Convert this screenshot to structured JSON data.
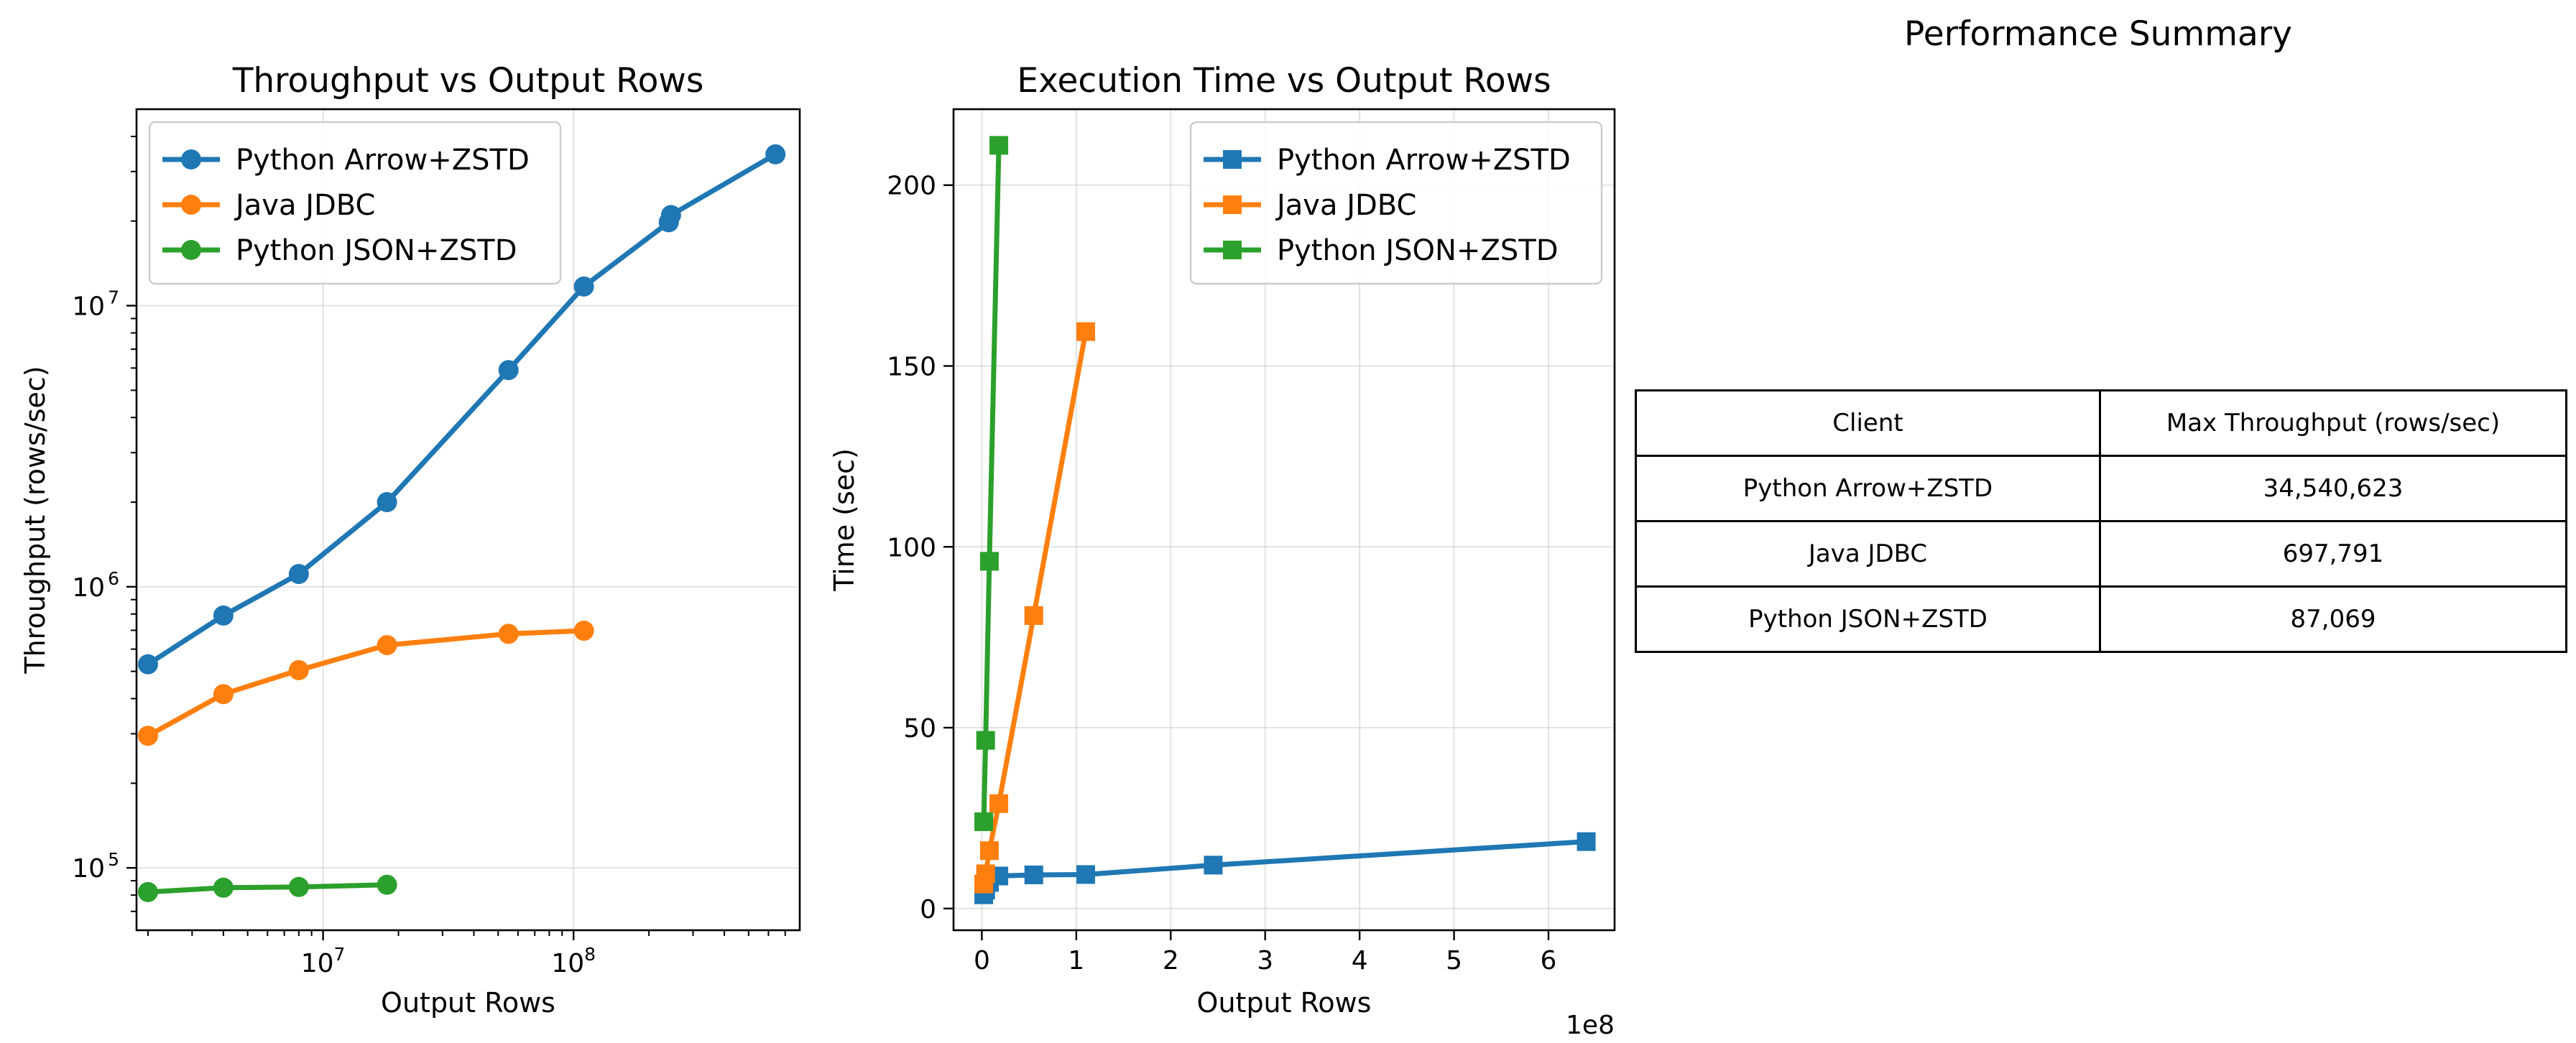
{
  "chart_data": [
    {
      "type": "line",
      "title": "Throughput vs Output Rows",
      "xlabel": "Output Rows",
      "ylabel": "Throughput (rows/sec)",
      "xscale": "log",
      "yscale": "log",
      "xlim": [
        1800000,
        800000000
      ],
      "ylim": [
        60000,
        50000000
      ],
      "x_ticks": [
        {
          "value": 10000000,
          "label": "10^7"
        },
        {
          "value": 100000000,
          "label": "10^8"
        }
      ],
      "y_ticks": [
        {
          "value": 100000,
          "label": "10^5"
        },
        {
          "value": 1000000,
          "label": "10^6"
        },
        {
          "value": 10000000,
          "label": "10^7"
        }
      ],
      "grid": true,
      "legend": "top-left",
      "series": [
        {
          "name": "Python Arrow+ZSTD",
          "color": "#1f77b4",
          "marker": "circle",
          "x": [
            2000000,
            4000000,
            8000000,
            18000000,
            55000000,
            110000000,
            240000000,
            245000000,
            640000000
          ],
          "y": [
            530000,
            790000,
            1110000,
            2000000,
            5900000,
            11700000,
            19800000,
            21000000,
            34540623
          ]
        },
        {
          "name": "Java JDBC",
          "color": "#ff7f0e",
          "marker": "circle",
          "x": [
            2000000,
            4000000,
            8000000,
            18000000,
            55000000,
            110000000
          ],
          "y": [
            295000,
            415000,
            505000,
            620000,
            680000,
            697791
          ]
        },
        {
          "name": "Python JSON+ZSTD",
          "color": "#2ca02c",
          "marker": "circle",
          "x": [
            2000000,
            4000000,
            8000000,
            18000000
          ],
          "y": [
            82000,
            85000,
            85500,
            87069
          ]
        }
      ]
    },
    {
      "type": "line",
      "title": "Execution Time vs Output Rows",
      "xlabel": "Output Rows",
      "ylabel": "Time (sec)",
      "x_offset_text": "1e8",
      "xlim": [
        -0.3,
        6.7
      ],
      "ylim": [
        -6,
        221
      ],
      "x_ticks": [
        0,
        1,
        2,
        3,
        4,
        5,
        6
      ],
      "y_ticks": [
        0,
        50,
        100,
        150,
        200
      ],
      "grid": true,
      "legend": "top-right",
      "series": [
        {
          "name": "Python Arrow+ZSTD",
          "color": "#1f77b4",
          "marker": "square",
          "x": [
            0.02,
            0.04,
            0.08,
            0.18,
            0.55,
            1.1,
            2.45,
            6.4
          ],
          "y": [
            3.8,
            5.1,
            7.2,
            9.0,
            9.3,
            9.4,
            12.0,
            18.5
          ]
        },
        {
          "name": "Java JDBC",
          "color": "#ff7f0e",
          "marker": "square",
          "x": [
            0.02,
            0.04,
            0.08,
            0.18,
            0.55,
            1.1
          ],
          "y": [
            6.8,
            9.6,
            16.0,
            29.0,
            81.0,
            159.5
          ]
        },
        {
          "name": "Python JSON+ZSTD",
          "color": "#2ca02c",
          "marker": "square",
          "x": [
            0.02,
            0.04,
            0.08,
            0.18
          ],
          "y": [
            24.0,
            46.5,
            96.0,
            211.0
          ]
        }
      ]
    },
    {
      "type": "table",
      "title": "Performance Summary",
      "columns": [
        "Client",
        "Max Throughput (rows/sec)"
      ],
      "rows": [
        [
          "Python Arrow+ZSTD",
          "34,540,623"
        ],
        [
          "Java JDBC",
          "697,791"
        ],
        [
          "Python JSON+ZSTD",
          "87,069"
        ]
      ]
    }
  ]
}
